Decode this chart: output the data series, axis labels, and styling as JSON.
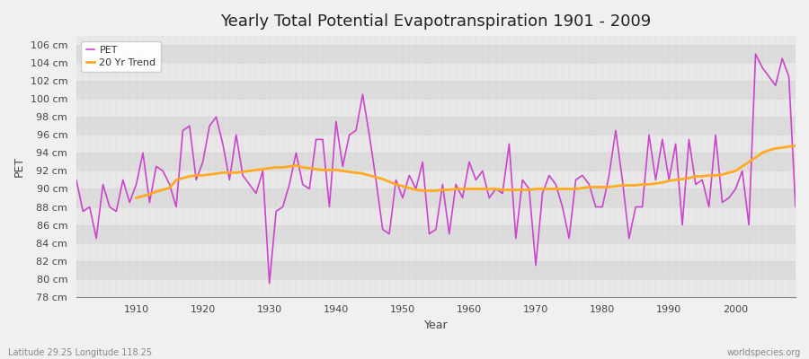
{
  "title": "Yearly Total Potential Evapotranspiration 1901 - 2009",
  "xlabel": "Year",
  "ylabel": "PET",
  "subtitle_left": "Latitude 29.25 Longitude 118.25",
  "subtitle_right": "worldspecies.org",
  "background_color": "#f0f0f0",
  "plot_bg_color": "#e8e8e8",
  "band_color_light": "#e8e8e8",
  "band_color_dark": "#dcdcdc",
  "pet_color": "#cc44cc",
  "trend_color": "#ffaa22",
  "ylim": [
    78,
    107
  ],
  "yticks": [
    78,
    80,
    82,
    84,
    86,
    88,
    90,
    92,
    94,
    96,
    98,
    100,
    102,
    104,
    106
  ],
  "years": [
    1901,
    1902,
    1903,
    1904,
    1905,
    1906,
    1907,
    1908,
    1909,
    1910,
    1911,
    1912,
    1913,
    1914,
    1915,
    1916,
    1917,
    1918,
    1919,
    1920,
    1921,
    1922,
    1923,
    1924,
    1925,
    1926,
    1927,
    1928,
    1929,
    1930,
    1931,
    1932,
    1933,
    1934,
    1935,
    1936,
    1937,
    1938,
    1939,
    1940,
    1941,
    1942,
    1943,
    1944,
    1945,
    1946,
    1947,
    1948,
    1949,
    1950,
    1951,
    1952,
    1953,
    1954,
    1955,
    1956,
    1957,
    1958,
    1959,
    1960,
    1961,
    1962,
    1963,
    1964,
    1965,
    1966,
    1967,
    1968,
    1969,
    1970,
    1971,
    1972,
    1973,
    1974,
    1975,
    1976,
    1977,
    1978,
    1979,
    1980,
    1981,
    1982,
    1983,
    1984,
    1985,
    1986,
    1987,
    1988,
    1989,
    1990,
    1991,
    1992,
    1993,
    1994,
    1995,
    1996,
    1997,
    1998,
    1999,
    2000,
    2001,
    2002,
    2003,
    2004,
    2005,
    2006,
    2007,
    2008,
    2009
  ],
  "pet_values": [
    91.0,
    87.5,
    88.0,
    84.5,
    90.5,
    88.0,
    87.5,
    91.0,
    88.5,
    90.5,
    94.0,
    88.5,
    92.5,
    92.0,
    90.5,
    88.0,
    96.5,
    97.0,
    91.0,
    93.0,
    97.0,
    98.0,
    95.0,
    91.0,
    96.0,
    91.5,
    90.5,
    89.5,
    92.0,
    79.5,
    87.5,
    88.0,
    90.5,
    94.0,
    90.5,
    90.0,
    95.5,
    95.5,
    88.0,
    97.5,
    92.5,
    96.0,
    96.5,
    100.5,
    96.0,
    91.0,
    85.5,
    85.0,
    91.0,
    89.0,
    91.5,
    90.0,
    93.0,
    85.0,
    85.5,
    90.5,
    85.0,
    90.5,
    89.0,
    93.0,
    91.0,
    92.0,
    89.0,
    90.0,
    89.5,
    95.0,
    84.5,
    91.0,
    90.0,
    81.5,
    89.5,
    91.5,
    90.5,
    88.0,
    84.5,
    91.0,
    91.5,
    90.5,
    88.0,
    88.0,
    91.5,
    96.5,
    91.0,
    84.5,
    88.0,
    88.0,
    96.0,
    91.0,
    95.5,
    91.0,
    95.0,
    86.0,
    95.5,
    90.5,
    91.0,
    88.0,
    96.0,
    88.5,
    89.0,
    90.0,
    92.0,
    86.0,
    105.0,
    103.5,
    102.5,
    101.5,
    104.5,
    102.5,
    88.0
  ],
  "trend_years": [
    1910,
    1911,
    1912,
    1913,
    1914,
    1915,
    1916,
    1917,
    1918,
    1919,
    1920,
    1921,
    1922,
    1923,
    1924,
    1925,
    1926,
    1927,
    1928,
    1929,
    1930,
    1931,
    1932,
    1933,
    1934,
    1935,
    1936,
    1937,
    1938,
    1939,
    1940,
    1941,
    1942,
    1943,
    1944,
    1945,
    1946,
    1947,
    1948,
    1949,
    1950,
    1951,
    1952,
    1953,
    1954,
    1955,
    1956,
    1957,
    1958,
    1959,
    1960,
    1961,
    1962,
    1963,
    1964,
    1965,
    1966,
    1967,
    1968,
    1969,
    1970,
    1971,
    1972,
    1973,
    1974,
    1975,
    1976,
    1977,
    1978,
    1979,
    1980,
    1981,
    1982,
    1983,
    1984,
    1985,
    1986,
    1987,
    1988,
    1989,
    1990,
    1991,
    1992,
    1993,
    1994,
    1995,
    1996,
    1997,
    1998,
    1999,
    2000,
    2001,
    2002,
    2003,
    2004,
    2005,
    2006,
    2007,
    2008,
    2009
  ],
  "trend_values": [
    89.0,
    89.2,
    89.4,
    89.7,
    89.9,
    90.1,
    91.0,
    91.2,
    91.4,
    91.5,
    91.5,
    91.6,
    91.7,
    91.8,
    91.8,
    91.8,
    91.9,
    92.0,
    92.1,
    92.2,
    92.3,
    92.4,
    92.4,
    92.5,
    92.6,
    92.4,
    92.3,
    92.2,
    92.1,
    92.1,
    92.1,
    92.0,
    91.9,
    91.8,
    91.7,
    91.5,
    91.3,
    91.1,
    90.8,
    90.5,
    90.3,
    90.1,
    89.9,
    89.8,
    89.8,
    89.8,
    89.9,
    89.9,
    90.0,
    90.0,
    90.0,
    90.0,
    90.0,
    90.0,
    90.0,
    89.9,
    89.9,
    89.9,
    89.9,
    89.9,
    90.0,
    90.0,
    90.0,
    90.0,
    90.0,
    90.0,
    90.0,
    90.1,
    90.2,
    90.2,
    90.2,
    90.2,
    90.3,
    90.4,
    90.4,
    90.4,
    90.5,
    90.5,
    90.6,
    90.7,
    90.9,
    91.0,
    91.1,
    91.2,
    91.4,
    91.4,
    91.5,
    91.5,
    91.6,
    91.8,
    92.0,
    92.5,
    93.0,
    93.5,
    94.0,
    94.3,
    94.5,
    94.6,
    94.7,
    94.8
  ]
}
